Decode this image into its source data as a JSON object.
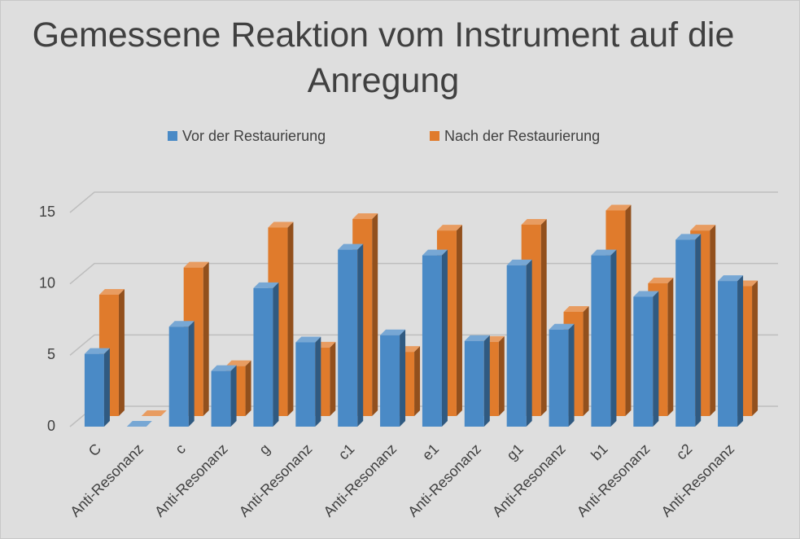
{
  "chart_data": {
    "type": "bar3d",
    "title": "Gemessene Reaktion vom Instrument auf die Anregung",
    "categories": [
      "C",
      "Anti-Resonanz",
      "c",
      "Anti-Resonanz",
      "g",
      "Anti-Resonanz",
      "c1",
      "Anti-Resonanz",
      "e1",
      "Anti-Resonanz",
      "g1",
      "Anti-Resonanz",
      "b1",
      "Anti-Resonanz",
      "c2",
      "Anti-Resonanz"
    ],
    "series": [
      {
        "name": "Vor der Restaurierung",
        "color": "#4a8ac6",
        "values": [
          5.1,
          0,
          7.0,
          3.9,
          9.7,
          5.9,
          12.4,
          6.4,
          12.0,
          6.0,
          11.3,
          6.8,
          12.0,
          9.1,
          13.1,
          10.2
        ]
      },
      {
        "name": "Nach der Restaurierung",
        "color": "#e07b2c",
        "values": [
          8.5,
          0,
          10.4,
          3.5,
          13.2,
          4.8,
          13.8,
          4.5,
          13.0,
          5.2,
          13.4,
          7.3,
          14.4,
          9.3,
          13.0,
          9.1
        ]
      }
    ],
    "ylim": [
      0,
      15
    ],
    "yticks": [
      0,
      5,
      10,
      15
    ],
    "grid": true,
    "legend": "top"
  }
}
